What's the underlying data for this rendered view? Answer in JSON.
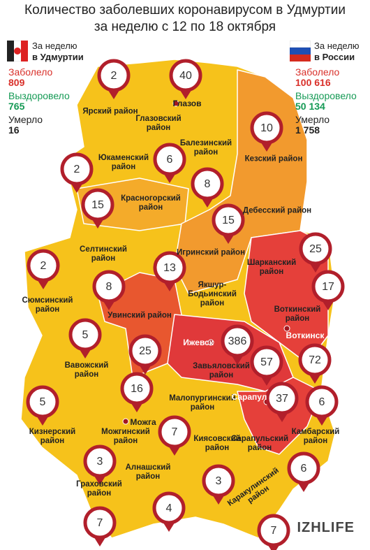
{
  "header": {
    "title": "Количество заболевших коронавирусом в Удмуртии",
    "subtitle": "за неделю с 12 по 18 октября"
  },
  "left_panel": {
    "caption_line1": "За неделю",
    "caption_line2": "в Удмуртии",
    "stats": [
      {
        "label": "Заболело",
        "value": "809"
      },
      {
        "label": "Выздоровело",
        "value": "765"
      },
      {
        "label": "Умерло",
        "value": "16"
      }
    ]
  },
  "right_panel": {
    "caption_line1": "За неделю",
    "caption_line2": "в России",
    "stats": [
      {
        "label": "Заболело",
        "value": "100 616"
      },
      {
        "label": "Выздоровело",
        "value": "50 134"
      },
      {
        "label": "Умерло",
        "value": "1 758"
      }
    ]
  },
  "districts": [
    {
      "name": "Ярский район",
      "value": 2
    },
    {
      "name": "Глазовский район",
      "value": 6
    },
    {
      "name": "Балезинский район",
      "value": 8
    },
    {
      "name": "Кезский район",
      "value": 10
    },
    {
      "name": "Юкаменский район",
      "value": 2
    },
    {
      "name": "Красногорский район",
      "value": 15
    },
    {
      "name": "Дебесский район",
      "value": null
    },
    {
      "name": "Игринский район",
      "value": 15
    },
    {
      "name": "Селтинский район",
      "value": 8
    },
    {
      "name": "Шарканский район",
      "value": 25
    },
    {
      "name": "Сюмсинский район",
      "value": 2
    },
    {
      "name": "Якшур-Бодьинский район",
      "value": 13
    },
    {
      "name": "Увинский район",
      "value": 25
    },
    {
      "name": "Воткинский район",
      "value": 17
    },
    {
      "name": "Завьяловский район",
      "value": 57
    },
    {
      "name": "Вавожский район",
      "value": 5
    },
    {
      "name": "Можгинский район",
      "value": 3
    },
    {
      "name": "Малопургинский район",
      "value": 7
    },
    {
      "name": "Кизнерский район",
      "value": 5
    },
    {
      "name": "Граховский район",
      "value": 7
    },
    {
      "name": "Алнашский район",
      "value": 4
    },
    {
      "name": "Киясовский район",
      "value": 3
    },
    {
      "name": "Сарапульский район",
      "value": 6
    },
    {
      "name": "Камбарский район",
      "value": 6
    },
    {
      "name": "Каракулинский район",
      "value": 7
    }
  ],
  "cities": [
    {
      "name": "Глазов",
      "value": 40
    },
    {
      "name": "Ижевск",
      "value": 386
    },
    {
      "name": "Воткинск",
      "value": 72
    },
    {
      "name": "Можга",
      "value": 16
    },
    {
      "name": "Сарапул",
      "value": 37
    }
  ],
  "logo": "IZHLIFE"
}
